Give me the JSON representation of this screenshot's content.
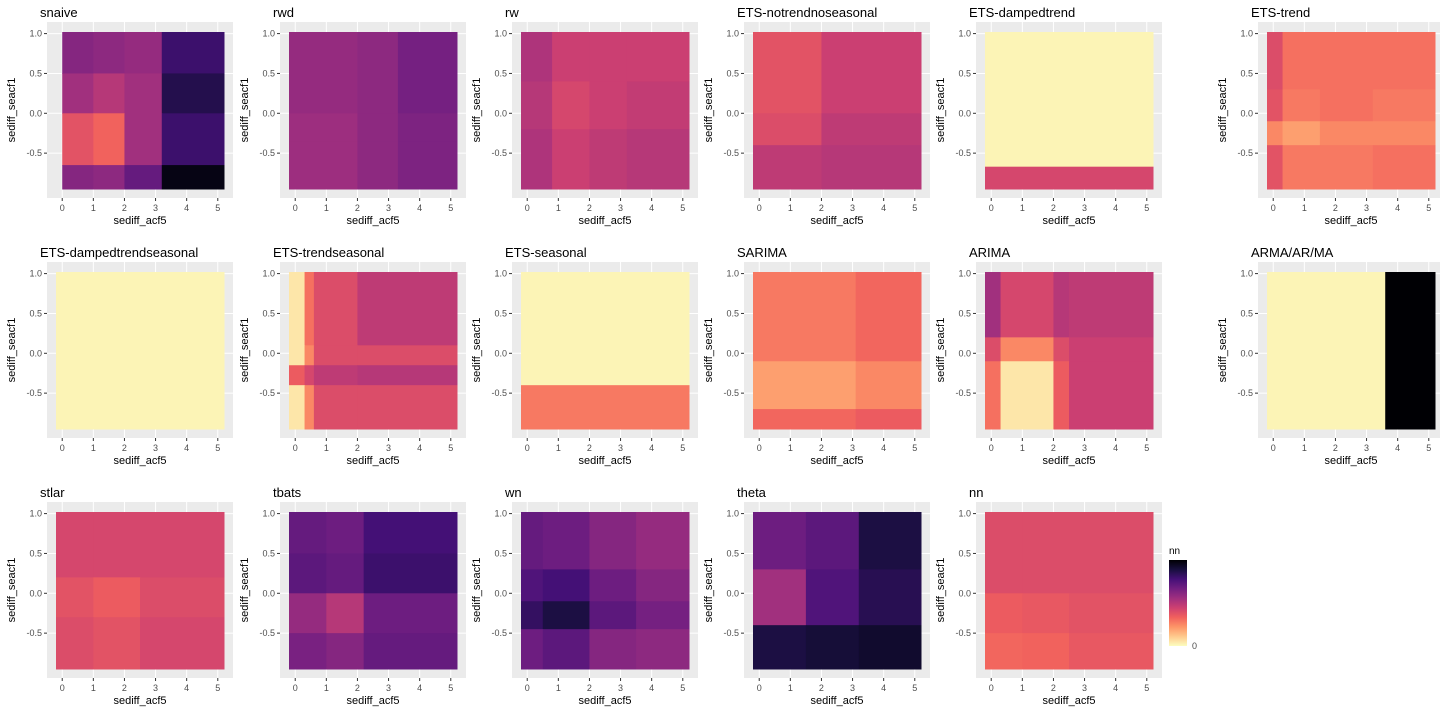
{
  "chart_data": [
    {
      "type": "heatmap",
      "title": "snaive",
      "xlabel": "sediff_acf5",
      "ylabel": "sediff_seacf1",
      "xlim": [
        -0.2,
        5.2
      ],
      "ylim": [
        -0.95,
        1.02
      ],
      "x_ticks": [
        "0",
        "1",
        "2",
        "3",
        "4",
        "5"
      ],
      "y_ticks": [
        "1.0",
        "0.5",
        "0.0",
        "-0.5"
      ],
      "xbreaks": [
        0,
        1.0,
        2.0,
        3.2,
        5.2
      ],
      "ybreaks": [
        1.02,
        0.5,
        0.0,
        -0.65,
        -0.95
      ],
      "values": [
        [
          0.62,
          0.6,
          0.58,
          0.8
        ],
        [
          0.55,
          0.5,
          0.55,
          0.86
        ],
        [
          0.38,
          0.33,
          0.55,
          0.8
        ],
        [
          0.62,
          0.6,
          0.7,
          0.97
        ]
      ]
    },
    {
      "type": "heatmap",
      "title": "rwd",
      "xlabel": "sediff_acf5",
      "ylabel": "sediff_seacf1",
      "xlim": [
        -0.2,
        5.2
      ],
      "ylim": [
        -0.95,
        1.02
      ],
      "x_ticks": [
        "0",
        "1",
        "2",
        "3",
        "4",
        "5"
      ],
      "y_ticks": [
        "1.0",
        "0.5",
        "0.0",
        "-0.5"
      ],
      "xbreaks": [
        -0.2,
        2.0,
        3.3,
        5.2
      ],
      "ybreaks": [
        1.02,
        0.0,
        -0.35,
        -0.95
      ],
      "values": [
        [
          0.58,
          0.6,
          0.66
        ],
        [
          0.56,
          0.6,
          0.64
        ],
        [
          0.56,
          0.6,
          0.64
        ]
      ]
    },
    {
      "type": "heatmap",
      "title": "rw",
      "xlabel": "sediff_acf5",
      "ylabel": "sediff_seacf1",
      "xlim": [
        -0.2,
        5.2
      ],
      "ylim": [
        -0.95,
        1.02
      ],
      "x_ticks": [
        "0",
        "1",
        "2",
        "3",
        "4",
        "5"
      ],
      "y_ticks": [
        "1.0",
        "0.5",
        "0.0",
        "-0.5"
      ],
      "xbreaks": [
        -0.2,
        0.8,
        2.0,
        3.2,
        5.2
      ],
      "ybreaks": [
        1.02,
        0.4,
        -0.2,
        -0.95
      ],
      "values": [
        [
          0.52,
          0.45,
          0.45,
          0.45
        ],
        [
          0.5,
          0.42,
          0.45,
          0.47
        ],
        [
          0.52,
          0.45,
          0.48,
          0.5
        ]
      ]
    },
    {
      "type": "heatmap",
      "title": "ETS-notrendnoseasonal",
      "xlabel": "sediff_acf5",
      "ylabel": "sediff_seacf1",
      "xlim": [
        -0.2,
        5.2
      ],
      "ylim": [
        -0.95,
        1.02
      ],
      "x_ticks": [
        "0",
        "1",
        "2",
        "3",
        "4",
        "5"
      ],
      "y_ticks": [
        "1.0",
        "0.5",
        "0.0",
        "-0.5"
      ],
      "xbreaks": [
        -0.2,
        2.0,
        5.2
      ],
      "ybreaks": [
        1.02,
        0.0,
        -0.4,
        -0.95
      ],
      "values": [
        [
          0.38,
          0.45
        ],
        [
          0.4,
          0.48
        ],
        [
          0.48,
          0.5
        ]
      ]
    },
    {
      "type": "heatmap",
      "title": "ETS-dampedtrend",
      "xlabel": "sediff_acf5",
      "ylabel": "sediff_seacf1",
      "xlim": [
        -0.2,
        5.2
      ],
      "ylim": [
        -0.95,
        1.02
      ],
      "x_ticks": [
        "0",
        "1",
        "2",
        "3",
        "4",
        "5"
      ],
      "y_ticks": [
        "1.0",
        "0.5",
        "0.0",
        "-0.5"
      ],
      "xbreaks": [
        -0.2,
        5.2
      ],
      "ybreaks": [
        1.02,
        -0.67,
        -0.95
      ],
      "values": [
        [
          0.02
        ],
        [
          0.42
        ]
      ]
    },
    {
      "type": "heatmap",
      "title": "ETS-trend",
      "xlabel": "sediff_acf5",
      "ylabel": "sediff_seacf1",
      "xlim": [
        -0.2,
        5.2
      ],
      "ylim": [
        -0.95,
        1.02
      ],
      "x_ticks": [
        "0",
        "1",
        "2",
        "3",
        "4",
        "5"
      ],
      "y_ticks": [
        "1.0",
        "0.5",
        "0.0",
        "-0.5"
      ],
      "xbreaks": [
        -0.2,
        0.3,
        1.5,
        3.2,
        5.2
      ],
      "ybreaks": [
        1.02,
        0.3,
        -0.1,
        -0.4,
        -0.95
      ],
      "values": [
        [
          0.4,
          0.3,
          0.3,
          0.3
        ],
        [
          0.38,
          0.28,
          0.3,
          0.28
        ],
        [
          0.25,
          0.2,
          0.25,
          0.25
        ],
        [
          0.38,
          0.28,
          0.28,
          0.3
        ]
      ]
    },
    {
      "type": "heatmap",
      "title": "ETS-dampedtrendseasonal",
      "xlabel": "sediff_acf5",
      "ylabel": "sediff_seacf1",
      "xlim": [
        -0.2,
        5.2
      ],
      "ylim": [
        -0.95,
        1.02
      ],
      "x_ticks": [
        "0",
        "1",
        "2",
        "3",
        "4",
        "5"
      ],
      "y_ticks": [
        "1.0",
        "0.5",
        "0.0",
        "-0.5"
      ],
      "xbreaks": [
        -0.2,
        5.2
      ],
      "ybreaks": [
        1.02,
        -0.95
      ],
      "values": [
        [
          0.02
        ]
      ]
    },
    {
      "type": "heatmap",
      "title": "ETS-trendseasonal",
      "xlabel": "sediff_acf5",
      "ylabel": "sediff_seacf1",
      "xlim": [
        -0.2,
        5.2
      ],
      "ylim": [
        -0.95,
        1.02
      ],
      "x_ticks": [
        "0",
        "1",
        "2",
        "3",
        "4",
        "5"
      ],
      "y_ticks": [
        "1.0",
        "0.5",
        "0.0",
        "-0.5"
      ],
      "xbreaks": [
        -0.2,
        0.3,
        0.6,
        2.0,
        5.2
      ],
      "ybreaks": [
        1.02,
        0.1,
        -0.15,
        -0.4,
        -0.95
      ],
      "values": [
        [
          0.05,
          0.3,
          0.4,
          0.48
        ],
        [
          0.05,
          0.25,
          0.4,
          0.4
        ],
        [
          0.35,
          0.42,
          0.48,
          0.5
        ],
        [
          0.05,
          0.25,
          0.4,
          0.4
        ]
      ]
    },
    {
      "type": "heatmap",
      "title": "ETS-seasonal",
      "xlabel": "sediff_acf5",
      "ylabel": "sediff_seacf1",
      "xlim": [
        -0.2,
        5.2
      ],
      "ylim": [
        -0.95,
        1.02
      ],
      "x_ticks": [
        "0",
        "1",
        "2",
        "3",
        "4",
        "5"
      ],
      "y_ticks": [
        "1.0",
        "0.5",
        "0.0",
        "-0.5"
      ],
      "xbreaks": [
        -0.2,
        5.2
      ],
      "ybreaks": [
        1.02,
        -0.4,
        -0.95
      ],
      "values": [
        [
          0.02
        ],
        [
          0.28
        ]
      ]
    },
    {
      "type": "heatmap",
      "title": "SARIMA",
      "xlabel": "sediff_acf5",
      "ylabel": "sediff_seacf1",
      "xlim": [
        -0.2,
        5.2
      ],
      "ylim": [
        -0.95,
        1.02
      ],
      "x_ticks": [
        "0",
        "1",
        "2",
        "3",
        "4",
        "5"
      ],
      "y_ticks": [
        "1.0",
        "0.5",
        "0.0",
        "-0.5"
      ],
      "xbreaks": [
        -0.2,
        3.1,
        5.2
      ],
      "ybreaks": [
        1.02,
        -0.1,
        -0.7,
        -0.95
      ],
      "values": [
        [
          0.28,
          0.32
        ],
        [
          0.2,
          0.25
        ],
        [
          0.32,
          0.35
        ]
      ]
    },
    {
      "type": "heatmap",
      "title": "ARIMA",
      "xlabel": "sediff_acf5",
      "ylabel": "sediff_seacf1",
      "xlim": [
        -0.2,
        5.2
      ],
      "ylim": [
        -0.95,
        1.02
      ],
      "x_ticks": [
        "0",
        "1",
        "2",
        "3",
        "4",
        "5"
      ],
      "y_ticks": [
        "1.0",
        "0.5",
        "0.0",
        "-0.5"
      ],
      "xbreaks": [
        -0.2,
        0.3,
        2.0,
        2.5,
        5.2
      ],
      "ybreaks": [
        1.02,
        0.2,
        -0.1,
        -0.95
      ],
      "values": [
        [
          0.55,
          0.42,
          0.5,
          0.48
        ],
        [
          0.4,
          0.25,
          0.4,
          0.45
        ],
        [
          0.3,
          0.05,
          0.35,
          0.45
        ]
      ]
    },
    {
      "type": "heatmap",
      "title": "ARMA/AR/MA",
      "xlabel": "sediff_acf5",
      "ylabel": "sediff_seacf1",
      "xlim": [
        -0.2,
        5.2
      ],
      "ylim": [
        -0.95,
        1.02
      ],
      "x_ticks": [
        "0",
        "1",
        "2",
        "3",
        "4",
        "5"
      ],
      "y_ticks": [
        "1.0",
        "0.5",
        "0.0",
        "-0.5"
      ],
      "xbreaks": [
        -0.2,
        3.6,
        5.2
      ],
      "ybreaks": [
        1.02,
        -0.95
      ],
      "values": [
        [
          0.02,
          1.0
        ]
      ]
    },
    {
      "type": "heatmap",
      "title": "stlar",
      "xlabel": "sediff_acf5",
      "ylabel": "sediff_seacf1",
      "xlim": [
        -0.2,
        5.2
      ],
      "ylim": [
        -0.95,
        1.02
      ],
      "x_ticks": [
        "0",
        "1",
        "2",
        "3",
        "4",
        "5"
      ],
      "y_ticks": [
        "1.0",
        "0.5",
        "0.0",
        "-0.5"
      ],
      "xbreaks": [
        -0.2,
        1.0,
        2.5,
        5.2
      ],
      "ybreaks": [
        1.02,
        0.2,
        -0.3,
        -0.95
      ],
      "values": [
        [
          0.42,
          0.42,
          0.42
        ],
        [
          0.38,
          0.35,
          0.4
        ],
        [
          0.4,
          0.38,
          0.42
        ]
      ]
    },
    {
      "type": "heatmap",
      "title": "tbats",
      "xlabel": "sediff_acf5",
      "ylabel": "sediff_seacf1",
      "xlim": [
        -0.2,
        5.2
      ],
      "ylim": [
        -0.95,
        1.02
      ],
      "x_ticks": [
        "0",
        "1",
        "2",
        "3",
        "4",
        "5"
      ],
      "y_ticks": [
        "1.0",
        "0.5",
        "0.0",
        "-0.5"
      ],
      "xbreaks": [
        -0.2,
        1.0,
        2.2,
        5.2
      ],
      "ybreaks": [
        1.02,
        0.5,
        0.0,
        -0.5,
        -0.95
      ],
      "values": [
        [
          0.7,
          0.68,
          0.78
        ],
        [
          0.72,
          0.7,
          0.8
        ],
        [
          0.58,
          0.5,
          0.68
        ],
        [
          0.65,
          0.62,
          0.7
        ]
      ]
    },
    {
      "type": "heatmap",
      "title": "wn",
      "xlabel": "sediff_acf5",
      "ylabel": "sediff_seacf1",
      "xlim": [
        -0.2,
        5.2
      ],
      "ylim": [
        -0.95,
        1.02
      ],
      "x_ticks": [
        "0",
        "1",
        "2",
        "3",
        "4",
        "5"
      ],
      "y_ticks": [
        "1.0",
        "0.5",
        "0.0",
        "-0.5"
      ],
      "xbreaks": [
        -0.2,
        0.5,
        2.0,
        3.5,
        5.2
      ],
      "ybreaks": [
        1.02,
        0.3,
        -0.1,
        -0.45,
        -0.95
      ],
      "values": [
        [
          0.7,
          0.68,
          0.62,
          0.58
        ],
        [
          0.75,
          0.78,
          0.68,
          0.62
        ],
        [
          0.82,
          0.88,
          0.72,
          0.66
        ],
        [
          0.68,
          0.72,
          0.62,
          0.6
        ]
      ]
    },
    {
      "type": "heatmap",
      "title": "theta",
      "xlabel": "sediff_acf5",
      "ylabel": "sediff_seacf1",
      "xlim": [
        -0.2,
        5.2
      ],
      "ylim": [
        -0.95,
        1.02
      ],
      "x_ticks": [
        "0",
        "1",
        "2",
        "3",
        "4",
        "5"
      ],
      "y_ticks": [
        "1.0",
        "0.5",
        "0.0",
        "-0.5"
      ],
      "xbreaks": [
        -0.2,
        1.5,
        3.2,
        5.2
      ],
      "ybreaks": [
        1.02,
        0.3,
        -0.4,
        -0.95
      ],
      "values": [
        [
          0.68,
          0.72,
          0.88
        ],
        [
          0.55,
          0.75,
          0.85
        ],
        [
          0.88,
          0.9,
          0.92
        ]
      ]
    },
    {
      "type": "heatmap",
      "title": "nn",
      "xlabel": "sediff_acf5",
      "ylabel": "sediff_seacf1",
      "xlim": [
        -0.2,
        5.2
      ],
      "ylim": [
        -0.95,
        1.02
      ],
      "x_ticks": [
        "0",
        "1",
        "2",
        "3",
        "4",
        "5"
      ],
      "y_ticks": [
        "1.0",
        "0.5",
        "0.0",
        "-0.5"
      ],
      "xbreaks": [
        -0.2,
        1.0,
        2.5,
        5.2
      ],
      "ybreaks": [
        1.02,
        0.0,
        -0.5,
        -0.95
      ],
      "values": [
        [
          0.4,
          0.4,
          0.4
        ],
        [
          0.35,
          0.36,
          0.38
        ],
        [
          0.32,
          0.33,
          0.36
        ]
      ]
    }
  ],
  "legend": {
    "title": "nn",
    "min_label": "0",
    "colors": [
      "#FCFDBF",
      "#FEC98D",
      "#FD9567",
      "#F1605D",
      "#CD4071",
      "#9F2F7F",
      "#721F81",
      "#451077",
      "#180F3E",
      "#000004"
    ]
  }
}
